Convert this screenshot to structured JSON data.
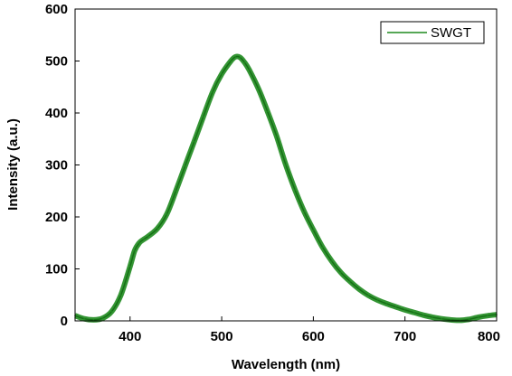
{
  "chart_data": {
    "type": "line",
    "title": "",
    "xlabel": "Wavelength (nm)",
    "ylabel": "Intensity (a.u.)",
    "xlim": [
      340,
      800
    ],
    "ylim": [
      0,
      600
    ],
    "xticks": [
      400,
      500,
      600,
      700,
      800
    ],
    "yticks": [
      0,
      100,
      200,
      300,
      400,
      500,
      600
    ],
    "grid": false,
    "legend_position": "top-right",
    "series": [
      {
        "name": "SWGT",
        "color": "#1e8a1e",
        "x": [
          340,
          350,
          360,
          370,
          380,
          390,
          400,
          405,
          410,
          415,
          420,
          430,
          440,
          450,
          460,
          470,
          480,
          490,
          500,
          510,
          515,
          520,
          525,
          530,
          540,
          550,
          560,
          570,
          580,
          590,
          600,
          610,
          620,
          630,
          640,
          650,
          660,
          670,
          680,
          690,
          700,
          710,
          720,
          730,
          740,
          750,
          760,
          770,
          780,
          790,
          800
        ],
        "y": [
          10,
          4,
          2,
          5,
          18,
          50,
          105,
          135,
          150,
          157,
          163,
          178,
          205,
          250,
          298,
          345,
          393,
          440,
          475,
          500,
          508,
          507,
          497,
          483,
          447,
          403,
          355,
          300,
          252,
          210,
          175,
          142,
          115,
          93,
          76,
          61,
          49,
          40,
          33,
          27,
          21,
          16,
          11,
          7,
          4,
          2,
          1,
          3,
          7,
          10,
          12
        ]
      }
    ]
  }
}
